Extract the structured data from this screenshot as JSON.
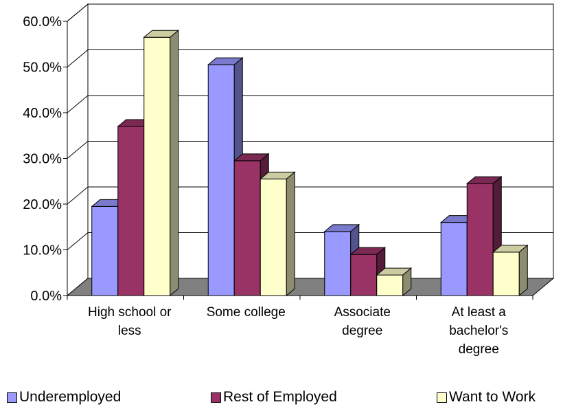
{
  "chart_data": {
    "type": "bar",
    "categories": [
      [
        "High school or",
        "less"
      ],
      [
        "Some college"
      ],
      [
        "Associate",
        "degree"
      ],
      [
        "At least a",
        "bachelor's",
        "degree"
      ]
    ],
    "series": [
      {
        "name": "Underemployed",
        "values": [
          19.5,
          50.5,
          14.0,
          16.0
        ],
        "color": "#9999ff"
      },
      {
        "name": "Rest of Employed",
        "values": [
          37.0,
          29.5,
          9.0,
          24.5
        ],
        "color": "#993366"
      },
      {
        "name": "Want to Work",
        "values": [
          56.5,
          25.5,
          4.5,
          9.5
        ],
        "color": "#ffffcc"
      }
    ],
    "ylim": [
      0,
      60
    ],
    "yticks": [
      "0.0%",
      "10.0%",
      "20.0%",
      "30.0%",
      "40.0%",
      "50.0%",
      "60.0%"
    ],
    "grid": true,
    "legend": "bottom",
    "title": "",
    "xlabel": "",
    "ylabel": ""
  }
}
